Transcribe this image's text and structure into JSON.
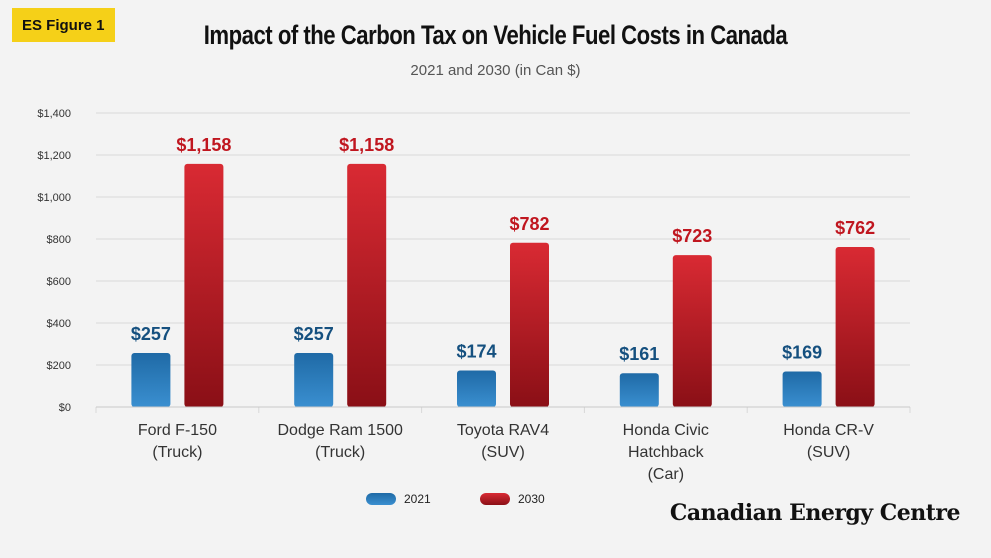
{
  "badge": "ES Figure 1",
  "brand": "Canadian Energy Centre",
  "colors": {
    "series_2021": "#1f6aa6",
    "series_2021_light": "#3a8fd0",
    "series_2030": "#c0161f",
    "series_2030_light": "#d92a33",
    "series_2030_dark": "#8a0f16",
    "label_2021": "#15507f",
    "label_2030": "#c0161f",
    "grid": "#d8d8d8",
    "axis_text": "#333333"
  },
  "chart_data": {
    "type": "bar",
    "title": "Impact of the Carbon Tax on Vehicle Fuel Costs in Canada",
    "subtitle": "2021 and 2030 (in Can $)",
    "categories": [
      [
        "Ford F-150",
        "(Truck)"
      ],
      [
        "Dodge Ram 1500",
        "(Truck)"
      ],
      [
        "Toyota RAV4",
        "(SUV)"
      ],
      [
        "Honda Civic",
        "Hatchback",
        "(Car)"
      ],
      [
        "Honda CR-V",
        "(SUV)"
      ]
    ],
    "series": [
      {
        "name": "2021",
        "values": [
          257,
          257,
          174,
          161,
          169
        ],
        "labels": [
          "$257",
          "$257",
          "$174",
          "$161",
          "$169"
        ]
      },
      {
        "name": "2030",
        "values": [
          1158,
          1158,
          782,
          723,
          762
        ],
        "labels": [
          "$1,158",
          "$1,158",
          "$782",
          "$723",
          "$762"
        ]
      }
    ],
    "ylim": [
      0,
      1400
    ],
    "yticks": [
      0,
      200,
      400,
      600,
      800,
      1000,
      1200,
      1400
    ],
    "ytick_labels": [
      "$0",
      "$200",
      "$400",
      "$600",
      "$800",
      "$1,000",
      "$1,200",
      "$1,400"
    ],
    "grid": true,
    "legend_position": "bottom-center"
  }
}
